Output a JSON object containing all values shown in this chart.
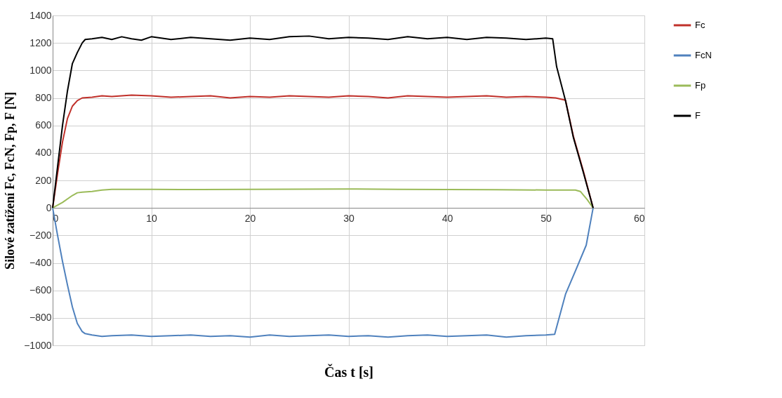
{
  "chart_data": {
    "type": "line",
    "xlabel": "Čas t [s]",
    "ylabel": "Silové zatížení  Fc, FcN, Fp, F [N]",
    "xlim": [
      0,
      60
    ],
    "xticks": [
      0,
      10,
      20,
      30,
      40,
      50,
      60
    ],
    "ylim": [
      -1000,
      1400
    ],
    "yticks": [
      -1000,
      -800,
      -600,
      -400,
      -200,
      0,
      200,
      400,
      600,
      800,
      1000,
      1200,
      1400
    ],
    "grid": true,
    "legend": "right",
    "marker": "none",
    "line_style": "solid",
    "series": [
      {
        "name": "Fc",
        "color": "#c0302a",
        "x": [
          0,
          0.5,
          1,
          1.5,
          2,
          2.5,
          3,
          4,
          5,
          6,
          8,
          10,
          12,
          14,
          16,
          18,
          20,
          22,
          24,
          26,
          28,
          30,
          32,
          34,
          36,
          38,
          40,
          42,
          44,
          46,
          48,
          50,
          51,
          52,
          52.8,
          53.8,
          54.8
        ],
        "values": [
          0,
          250,
          480,
          650,
          740,
          780,
          800,
          805,
          815,
          810,
          820,
          815,
          805,
          810,
          815,
          800,
          810,
          805,
          815,
          810,
          805,
          815,
          810,
          800,
          815,
          810,
          805,
          810,
          815,
          805,
          810,
          805,
          800,
          783,
          520,
          270,
          0
        ]
      },
      {
        "name": "FcN",
        "color": "#4f81bd",
        "x": [
          0,
          0.5,
          1,
          1.5,
          2,
          2.5,
          3,
          3.3,
          4,
          5,
          6,
          8,
          10,
          12,
          14,
          16,
          18,
          20,
          22,
          24,
          26,
          28,
          30,
          32,
          34,
          36,
          38,
          40,
          42,
          44,
          46,
          48,
          50,
          50.9,
          52,
          53,
          54.1,
          54.8
        ],
        "values": [
          0,
          -200,
          -390,
          -560,
          -720,
          -840,
          -900,
          -915,
          -925,
          -935,
          -930,
          -925,
          -935,
          -930,
          -925,
          -935,
          -930,
          -940,
          -925,
          -935,
          -930,
          -925,
          -935,
          -930,
          -940,
          -930,
          -925,
          -935,
          -930,
          -925,
          -940,
          -930,
          -925,
          -920,
          -628,
          -459,
          -271,
          0
        ]
      },
      {
        "name": "Fp",
        "color": "#9bbb59",
        "x": [
          0,
          1,
          2,
          2.5,
          3,
          4,
          5,
          6,
          10,
          15,
          20,
          25,
          30,
          35,
          40,
          45,
          50,
          53,
          53.5,
          54.2,
          54.8
        ],
        "values": [
          0,
          40,
          90,
          110,
          115,
          120,
          130,
          135,
          135,
          133,
          135,
          136,
          138,
          135,
          133,
          132,
          130,
          130,
          120,
          60,
          0
        ]
      },
      {
        "name": "F",
        "color": "#000000",
        "x": [
          0,
          0.5,
          1,
          1.5,
          2,
          2.5,
          3,
          3.3,
          4,
          5,
          6,
          7,
          8,
          9,
          10,
          12,
          14,
          16,
          18,
          20,
          22,
          24,
          26,
          28,
          30,
          32,
          34,
          36,
          38,
          40,
          42,
          44,
          46,
          48,
          50,
          50.7,
          51.1,
          52,
          52.8,
          53.8,
          54.8
        ],
        "values": [
          0,
          300,
          600,
          850,
          1050,
          1130,
          1200,
          1225,
          1230,
          1240,
          1225,
          1245,
          1230,
          1220,
          1245,
          1225,
          1240,
          1230,
          1220,
          1235,
          1225,
          1245,
          1250,
          1230,
          1240,
          1235,
          1225,
          1245,
          1230,
          1240,
          1225,
          1240,
          1235,
          1225,
          1235,
          1230,
          1027,
          780,
          511,
          260,
          0
        ]
      }
    ]
  }
}
